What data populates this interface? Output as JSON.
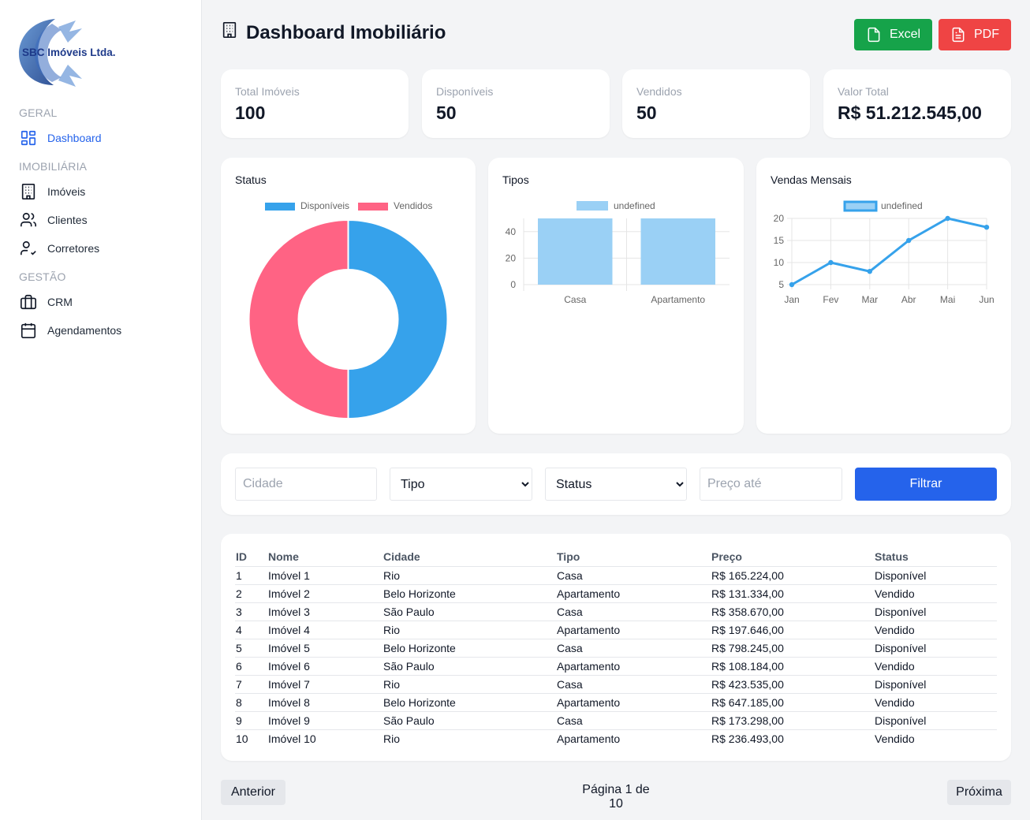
{
  "brand": {
    "name": "SBC Imóveis Ltda."
  },
  "sidebar": {
    "sections": [
      {
        "label": "GERAL"
      },
      {
        "label": "IMOBILIÁRIA"
      },
      {
        "label": "GESTÃO"
      }
    ],
    "items": [
      {
        "label": "Dashboard",
        "icon": "dashboard-grid-icon",
        "active": true
      },
      {
        "label": "Imóveis",
        "icon": "building-icon"
      },
      {
        "label": "Clientes",
        "icon": "users-icon"
      },
      {
        "label": "Corretores",
        "icon": "user-check-icon"
      },
      {
        "label": "CRM",
        "icon": "briefcase-icon"
      },
      {
        "label": "Agendamentos",
        "icon": "calendar-icon"
      }
    ]
  },
  "header": {
    "title": "Dashboard Imobiliário",
    "excel_label": "Excel",
    "pdf_label": "PDF"
  },
  "stats": [
    {
      "label": "Total Imóveis",
      "value": "100"
    },
    {
      "label": "Disponíveis",
      "value": "50"
    },
    {
      "label": "Vendidos",
      "value": "50"
    },
    {
      "label": "Valor Total",
      "value": "R$ 51.212.545,00"
    }
  ],
  "colors": {
    "primary": "#2563eb",
    "excel": "#16a34a",
    "pdf": "#ef4444",
    "donut_available": "#36a2eb",
    "donut_sold": "#ff6384",
    "bar_fill": "#9ad0f5",
    "line": "#36a2eb"
  },
  "chart_data": [
    {
      "type": "pie",
      "title": "Status",
      "categories": [
        "Disponíveis",
        "Vendidos"
      ],
      "values": [
        50,
        50
      ],
      "legend": "top"
    },
    {
      "type": "bar",
      "title": "Tipos",
      "categories": [
        "Casa",
        "Apartamento"
      ],
      "series": [
        {
          "name": "undefined",
          "values": [
            50,
            50
          ]
        }
      ],
      "y_ticks": [
        "0",
        "20",
        "40"
      ],
      "ylim": [
        0,
        50
      ],
      "legend": "top"
    },
    {
      "type": "line",
      "title": "Vendas Mensais",
      "categories": [
        "Jan",
        "Fev",
        "Mar",
        "Abr",
        "Mai",
        "Jun"
      ],
      "series": [
        {
          "name": "undefined",
          "values": [
            5,
            10,
            8,
            15,
            20,
            18
          ]
        }
      ],
      "y_ticks": [
        "5",
        "10",
        "15",
        "20"
      ],
      "ylim": [
        5,
        20
      ],
      "grid": true,
      "legend": "top"
    }
  ],
  "filters": {
    "city_placeholder": "Cidade",
    "type_selected": "Tipo",
    "status_selected": "Status",
    "price_placeholder": "Preço até",
    "filter_label": "Filtrar"
  },
  "table": {
    "headers": [
      "ID",
      "Nome",
      "Cidade",
      "Tipo",
      "Preço",
      "Status"
    ],
    "rows": [
      [
        "1",
        "Imóvel 1",
        "Rio",
        "Casa",
        "R$ 165.224,00",
        "Disponível"
      ],
      [
        "2",
        "Imóvel 2",
        "Belo Horizonte",
        "Apartamento",
        "R$ 131.334,00",
        "Vendido"
      ],
      [
        "3",
        "Imóvel 3",
        "São Paulo",
        "Casa",
        "R$ 358.670,00",
        "Disponível"
      ],
      [
        "4",
        "Imóvel 4",
        "Rio",
        "Apartamento",
        "R$ 197.646,00",
        "Vendido"
      ],
      [
        "5",
        "Imóvel 5",
        "Belo Horizonte",
        "Casa",
        "R$ 798.245,00",
        "Disponível"
      ],
      [
        "6",
        "Imóvel 6",
        "São Paulo",
        "Apartamento",
        "R$ 108.184,00",
        "Vendido"
      ],
      [
        "7",
        "Imóvel 7",
        "Rio",
        "Casa",
        "R$ 423.535,00",
        "Disponível"
      ],
      [
        "8",
        "Imóvel 8",
        "Belo Horizonte",
        "Apartamento",
        "R$ 647.185,00",
        "Vendido"
      ],
      [
        "9",
        "Imóvel 9",
        "São Paulo",
        "Casa",
        "R$ 173.298,00",
        "Disponível"
      ],
      [
        "10",
        "Imóvel 10",
        "Rio",
        "Apartamento",
        "R$ 236.493,00",
        "Vendido"
      ]
    ]
  },
  "pagination": {
    "prev_label": "Anterior",
    "info": "Página 1 de 10",
    "next_label": "Próxima"
  }
}
